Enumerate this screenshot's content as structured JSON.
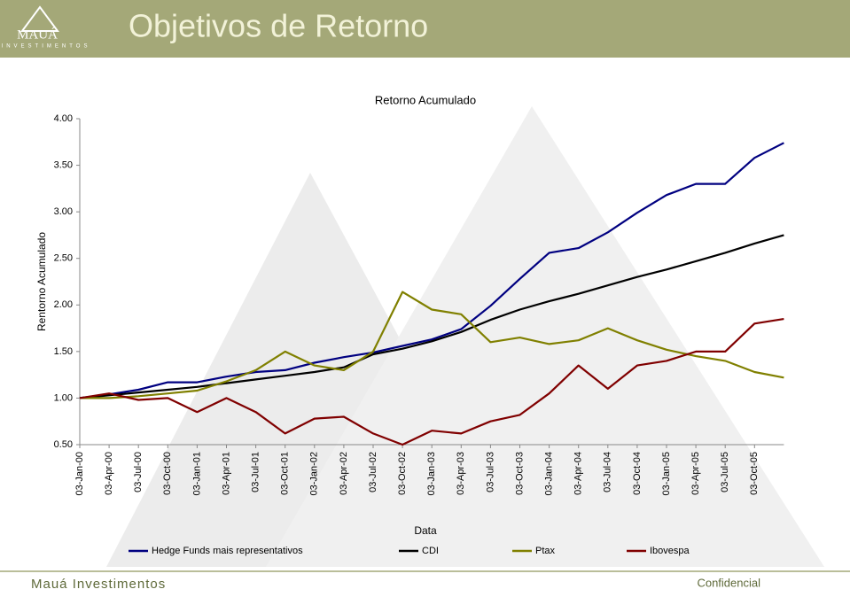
{
  "header": {
    "title": "Objetivos de Retorno",
    "logo_name": "MAUÁ",
    "logo_sub": "INVESTIMENTOS"
  },
  "footer": {
    "left": "Mauá Investimentos",
    "right": "Confidencial"
  },
  "chart_data": {
    "type": "line",
    "title": "Retorno Acumulado",
    "y_label": "Rentorno Acumulado",
    "x_label": "Data",
    "categories": [
      "03-Jan-00",
      "03-Apr-00",
      "03-Jul-00",
      "03-Oct-00",
      "03-Jan-01",
      "03-Apr-01",
      "03-Jul-01",
      "03-Oct-01",
      "03-Jan-02",
      "03-Apr-02",
      "03-Jul-02",
      "03-Oct-02",
      "03-Jan-03",
      "03-Apr-03",
      "03-Jul-03",
      "03-Oct-03",
      "03-Jan-04",
      "03-Apr-04",
      "03-Jul-04",
      "03-Oct-04",
      "03-Jan-05",
      "03-Apr-05",
      "03-Jul-05",
      "03-Oct-05",
      null
    ],
    "series": [
      {
        "name": "Hedge Funds mais representativos",
        "color": "#000080",
        "values": [
          1.0,
          1.04,
          1.09,
          1.17,
          1.17,
          1.23,
          1.28,
          1.3,
          1.38,
          1.44,
          1.49,
          1.56,
          1.63,
          1.74,
          1.99,
          2.28,
          2.56,
          2.61,
          2.78,
          2.99,
          3.18,
          3.3,
          3.3,
          3.58,
          3.74
        ]
      },
      {
        "name": "CDI",
        "color": "#000000",
        "values": [
          1.0,
          1.03,
          1.06,
          1.09,
          1.12,
          1.16,
          1.2,
          1.24,
          1.28,
          1.33,
          1.47,
          1.53,
          1.61,
          1.71,
          1.84,
          1.95,
          2.04,
          2.12,
          2.21,
          2.3,
          2.38,
          2.47,
          2.56,
          2.66,
          2.75
        ]
      },
      {
        "name": "Ptax",
        "color": "#808000",
        "values": [
          1.0,
          1.0,
          1.02,
          1.05,
          1.08,
          1.18,
          1.3,
          1.5,
          1.35,
          1.3,
          1.5,
          2.14,
          1.95,
          1.9,
          1.6,
          1.65,
          1.58,
          1.62,
          1.75,
          1.62,
          1.52,
          1.45,
          1.4,
          1.28,
          1.22
        ]
      },
      {
        "name": "Ibovespa",
        "color": "#800000",
        "values": [
          1.0,
          1.05,
          0.98,
          1.0,
          0.85,
          1.0,
          0.85,
          0.62,
          0.78,
          0.8,
          0.62,
          0.5,
          0.65,
          0.62,
          0.75,
          0.82,
          1.05,
          1.35,
          1.1,
          1.35,
          1.4,
          1.5,
          1.5,
          1.8,
          1.85
        ]
      }
    ],
    "ylim": [
      0.5,
      4.0
    ],
    "yticks": [
      {
        "value": 0.5,
        "label": "0.50"
      },
      {
        "value": 1.0,
        "label": "1.00"
      },
      {
        "value": 1.5,
        "label": "1.50"
      },
      {
        "value": 2.0,
        "label": "2.00"
      },
      {
        "value": 2.5,
        "label": "2.50"
      },
      {
        "value": 3.0,
        "label": "3.00"
      },
      {
        "value": 3.5,
        "label": "3.50"
      },
      {
        "value": 4.0,
        "label": "4.00"
      }
    ]
  }
}
